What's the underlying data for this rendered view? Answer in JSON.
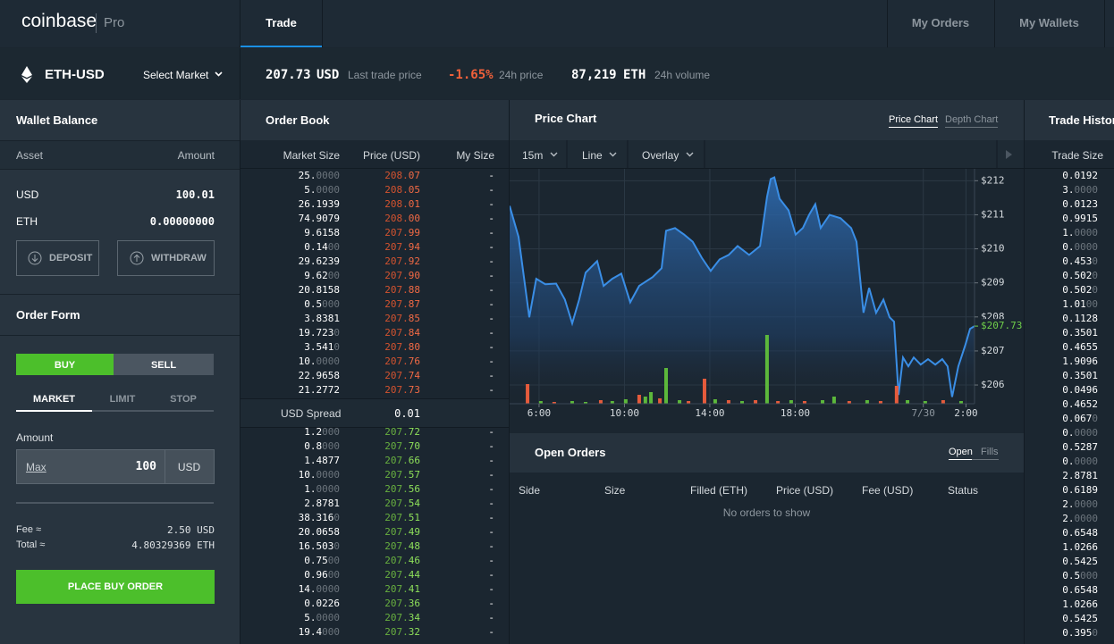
{
  "header": {
    "logo": "coinbase",
    "product": "Pro",
    "nav": [
      "Trade",
      "My Orders",
      "My Wallets"
    ]
  },
  "market": {
    "pair": "ETH-USD",
    "select": "Select Market",
    "last_price": "207.73",
    "last_price_unit": "USD",
    "last_price_label": "Last trade price",
    "change": "-1.65%",
    "change_label": "24h price",
    "volume": "87,219",
    "volume_unit": "ETH",
    "volume_label": "24h volume"
  },
  "wallet": {
    "title": "Wallet Balance",
    "columns": [
      "Asset",
      "Amount"
    ],
    "rows": [
      [
        "USD",
        "100.01"
      ],
      [
        "ETH",
        "0.00000000"
      ]
    ],
    "buttons": [
      "DEPOSIT",
      "WITHDRAW"
    ]
  },
  "order_form": {
    "title": "Order Form",
    "sides": [
      "BUY",
      "SELL"
    ],
    "types": [
      "MARKET",
      "LIMIT",
      "STOP"
    ],
    "amount_label": "Amount",
    "max": "Max",
    "amount": "100",
    "amount_unit": "USD",
    "fee_label": "Fee ≈",
    "fee": "2.50 USD",
    "total_label": "Total ≈",
    "total": "4.80329369 ETH",
    "submit": "PLACE BUY ORDER"
  },
  "order_book": {
    "title": "Order Book",
    "columns": [
      "Market Size",
      "Price (USD)",
      "My Size"
    ],
    "asks": [
      [
        "25.0000",
        "208.07",
        "-"
      ],
      [
        "5.0000",
        "208.05",
        "-"
      ],
      [
        "26.1939",
        "208.01",
        "-"
      ],
      [
        "74.9079",
        "208.00",
        "-"
      ],
      [
        "9.6158",
        "207.99",
        "-"
      ],
      [
        "0.1400",
        "207.94",
        "-"
      ],
      [
        "29.6239",
        "207.92",
        "-"
      ],
      [
        "9.6200",
        "207.90",
        "-"
      ],
      [
        "20.8158",
        "207.88",
        "-"
      ],
      [
        "0.5000",
        "207.87",
        "-"
      ],
      [
        "3.8381",
        "207.85",
        "-"
      ],
      [
        "19.7230",
        "207.84",
        "-"
      ],
      [
        "3.5410",
        "207.80",
        "-"
      ],
      [
        "10.0000",
        "207.76",
        "-"
      ],
      [
        "22.9658",
        "207.74",
        "-"
      ],
      [
        "21.2772",
        "207.73",
        "-"
      ]
    ],
    "spread_label": "USD Spread",
    "spread": "0.01",
    "bids": [
      [
        "1.2000",
        "207.72",
        "-"
      ],
      [
        "0.8000",
        "207.70",
        "-"
      ],
      [
        "1.4877",
        "207.66",
        "-"
      ],
      [
        "10.0000",
        "207.57",
        "-"
      ],
      [
        "1.0000",
        "207.56",
        "-"
      ],
      [
        "2.8781",
        "207.54",
        "-"
      ],
      [
        "38.3160",
        "207.51",
        "-"
      ],
      [
        "20.0658",
        "207.49",
        "-"
      ],
      [
        "16.5030",
        "207.48",
        "-"
      ],
      [
        "0.7500",
        "207.46",
        "-"
      ],
      [
        "0.9600",
        "207.44",
        "-"
      ],
      [
        "14.0000",
        "207.41",
        "-"
      ],
      [
        "0.0226",
        "207.36",
        "-"
      ],
      [
        "5.0000",
        "207.34",
        "-"
      ],
      [
        "19.4000",
        "207.32",
        "-"
      ]
    ]
  },
  "price_chart": {
    "title": "Price Chart",
    "tabs": [
      "Price Chart",
      "Depth Chart"
    ],
    "controls": [
      "15m",
      "Line",
      "Overlay"
    ]
  },
  "chart_data": {
    "type": "line",
    "color": "#3a8ee6",
    "x": [
      4.62,
      5.04,
      5.54,
      5.87,
      6.29,
      6.8,
      7.21,
      7.55,
      7.88,
      8.18,
      8.72,
      9.02,
      9.43,
      9.85,
      10.27,
      10.69,
      11.32,
      11.74,
      11.95,
      12.37,
      12.79,
      13.2,
      13.62,
      14.04,
      14.46,
      14.88,
      15.3,
      15.84,
      16.35,
      16.68,
      16.85,
      17.02,
      17.27,
      17.69,
      18.02,
      18.36,
      18.65,
      18.94,
      19.19,
      19.61,
      20.12,
      20.62,
      20.87,
      21.2,
      21.46,
      21.79,
      22.13,
      22.42,
      22.63,
      22.84,
      23.05,
      23.3,
      23.55,
      23.88,
      24.22,
      24.56,
      24.89,
      25.14,
      25.35,
      25.64,
      25.98,
      26.19,
      26.4
    ],
    "values": [
      211.26,
      210.35,
      207.99,
      209.12,
      208.96,
      208.98,
      208.51,
      207.81,
      208.51,
      209.3,
      209.64,
      208.91,
      209.12,
      209.27,
      208.43,
      208.91,
      209.17,
      209.43,
      210.53,
      210.61,
      210.42,
      210.21,
      209.74,
      209.35,
      209.69,
      209.82,
      210.08,
      209.82,
      210.08,
      211.52,
      212.05,
      212.1,
      211.47,
      211.13,
      210.42,
      210.61,
      211.0,
      211.31,
      210.61,
      211.0,
      210.9,
      210.61,
      210.21,
      208.12,
      208.85,
      208.12,
      208.51,
      207.99,
      207.86,
      205.71,
      206.81,
      206.55,
      206.81,
      206.6,
      206.76,
      206.6,
      206.76,
      206.55,
      205.65,
      206.55,
      207.2,
      207.65,
      207.73
    ],
    "xlim": [
      4.62,
      26.4
    ],
    "xticks": [
      {
        "value": 6,
        "label": "6:00"
      },
      {
        "value": 10,
        "label": "10:00"
      },
      {
        "value": 14,
        "label": "14:00"
      },
      {
        "value": 18,
        "label": "18:00"
      },
      {
        "value": 24,
        "label": "7/30"
      },
      {
        "value": 26,
        "label": "2:00"
      }
    ],
    "ylim": [
      205.45,
      212.35
    ],
    "yticks": [
      {
        "value": 206,
        "label": "$206"
      },
      {
        "value": 207,
        "label": "$207"
      },
      {
        "value": 208,
        "label": "$208"
      },
      {
        "value": 209,
        "label": "$209"
      },
      {
        "value": 210,
        "label": "$210"
      },
      {
        "value": 211,
        "label": "$211"
      },
      {
        "value": 212,
        "label": "$212"
      }
    ],
    "grid": true,
    "price_marker": {
      "value": 207.73,
      "label": "$207.73",
      "color": "#6fcf4a"
    },
    "volume": {
      "ylim": [
        0,
        263
      ],
      "x": [
        5.46,
        6.08,
        6.71,
        7.55,
        8.18,
        8.89,
        9.43,
        10.06,
        10.69,
        10.98,
        11.24,
        11.66,
        11.95,
        12.58,
        13.0,
        13.75,
        14.25,
        14.88,
        15.51,
        16.14,
        16.68,
        17.19,
        17.81,
        18.44,
        19.28,
        19.82,
        20.53,
        21.37,
        22.0,
        22.75,
        23.26,
        24.09,
        24.93,
        25.77
      ],
      "values": [
        22,
        3,
        2,
        3,
        2,
        4,
        3,
        5,
        10,
        8,
        13,
        6,
        40,
        4,
        3,
        28,
        5,
        4,
        3,
        4,
        77,
        3,
        4,
        3,
        4,
        8,
        3,
        4,
        3,
        20,
        4,
        3,
        4,
        3
      ],
      "colors": [
        "#e55b3c",
        "#5cb83b",
        "#e55b3c",
        "#5cb83b",
        "#5cb83b",
        "#e55b3c",
        "#5cb83b",
        "#5cb83b",
        "#e55b3c",
        "#5cb83b",
        "#5cb83b",
        "#e55b3c",
        "#5cb83b",
        "#5cb83b",
        "#e55b3c",
        "#e55b3c",
        "#5cb83b",
        "#e55b3c",
        "#5cb83b",
        "#e55b3c",
        "#5cb83b",
        "#e55b3c",
        "#5cb83b",
        "#e55b3c",
        "#5cb83b",
        "#5cb83b",
        "#e55b3c",
        "#5cb83b",
        "#e55b3c",
        "#e55b3c",
        "#5cb83b",
        "#5cb83b",
        "#e55b3c",
        "#5cb83b"
      ]
    }
  },
  "open_orders": {
    "title": "Open Orders",
    "tabs": [
      "Open",
      "Fills"
    ],
    "columns": [
      "Side",
      "Size",
      "Filled (ETH)",
      "Price (USD)",
      "Fee (USD)",
      "Status"
    ],
    "empty": "No orders to show"
  },
  "trade_history": {
    "title": "Trade History",
    "column": "Trade Size",
    "sizes": [
      "0.0192",
      "3.0000",
      "0.0123",
      "0.9915",
      "1.0000",
      "0.0000",
      "0.4530",
      "0.5020",
      "0.5020",
      "1.0100",
      "0.1128",
      "0.3501",
      "0.4655",
      "1.9096",
      "0.3501",
      "0.0496",
      "0.4652",
      "0.0670",
      "0.0000",
      "0.5287",
      "0.0000",
      "2.8781",
      "0.6189",
      "2.0000",
      "2.0000",
      "0.6548",
      "1.0266",
      "0.5425",
      "0.5000",
      "0.6548",
      "1.0266",
      "0.5425",
      "0.3950"
    ]
  }
}
